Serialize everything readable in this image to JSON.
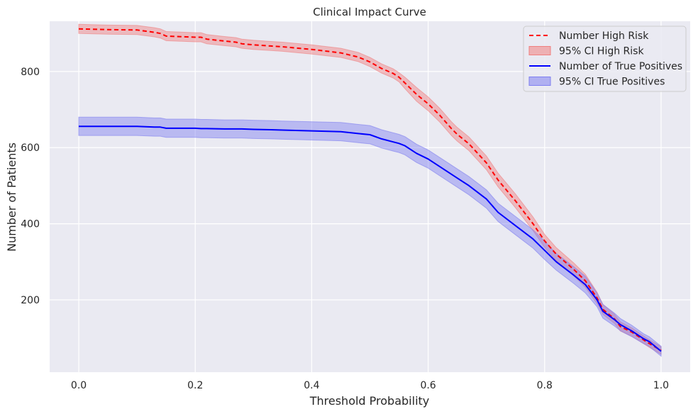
{
  "chart_data": {
    "type": "line",
    "title": "Clinical Impact Curve",
    "xlabel": "Threshold Probability",
    "ylabel": "Number of Patients",
    "xlim": [
      -0.05,
      1.05
    ],
    "ylim": [
      10,
      932
    ],
    "xticks": [
      0.0,
      0.2,
      0.4,
      0.6,
      0.8,
      1.0
    ],
    "xtick_labels": [
      "0.0",
      "0.2",
      "0.4",
      "0.6",
      "0.8",
      "1.0"
    ],
    "yticks": [
      200,
      400,
      600,
      800
    ],
    "ytick_labels": [
      "200",
      "400",
      "600",
      "800"
    ],
    "grid": true,
    "legend_position": "top-right",
    "colors": {
      "high_risk": "#ff0000",
      "true_positives": "#0000ff",
      "high_risk_band": "#f07f7f",
      "tp_band": "#7f7ff0",
      "background": "#eaeaf2"
    },
    "legend": [
      {
        "label": "Number High Risk",
        "kind": "dashed-line",
        "color": "#ff0000"
      },
      {
        "label": "95% CI High Risk",
        "kind": "band",
        "color": "#f07f7f"
      },
      {
        "label": "Number of True Positives",
        "kind": "line",
        "color": "#0000ff"
      },
      {
        "label": "95% CI True Positives",
        "kind": "band",
        "color": "#7f7ff0"
      }
    ],
    "x": [
      0.0,
      0.05,
      0.1,
      0.13,
      0.14,
      0.15,
      0.2,
      0.21,
      0.22,
      0.25,
      0.27,
      0.28,
      0.3,
      0.33,
      0.35,
      0.4,
      0.45,
      0.48,
      0.5,
      0.52,
      0.54,
      0.55,
      0.56,
      0.58,
      0.6,
      0.62,
      0.64,
      0.65,
      0.67,
      0.7,
      0.72,
      0.75,
      0.78,
      0.8,
      0.82,
      0.85,
      0.87,
      0.89,
      0.9,
      0.92,
      0.93,
      0.95,
      0.97,
      0.98,
      1.0
    ],
    "series": [
      {
        "name": "Number High Risk",
        "style": "dashed",
        "values": [
          912,
          910,
          909,
          903,
          900,
          893,
          890,
          890,
          885,
          880,
          877,
          873,
          870,
          867,
          865,
          858,
          849,
          838,
          825,
          808,
          795,
          785,
          770,
          740,
          715,
          685,
          650,
          635,
          610,
          560,
          515,
          460,
          400,
          355,
          320,
          280,
          250,
          205,
          175,
          150,
          130,
          115,
          95,
          85,
          67
        ],
        "ci_lower": [
          900,
          898,
          897,
          891,
          888,
          881,
          878,
          878,
          873,
          868,
          865,
          861,
          858,
          855,
          853,
          846,
          837,
          826,
          813,
          796,
          783,
          773,
          755,
          722,
          697,
          667,
          632,
          617,
          592,
          542,
          497,
          442,
          382,
          338,
          303,
          263,
          233,
          190,
          162,
          138,
          118,
          104,
          85,
          75,
          57
        ],
        "ci_upper": [
          924,
          922,
          921,
          915,
          912,
          905,
          902,
          902,
          897,
          892,
          889,
          885,
          882,
          879,
          877,
          870,
          861,
          850,
          837,
          820,
          807,
          797,
          785,
          758,
          733,
          703,
          668,
          653,
          628,
          578,
          533,
          478,
          418,
          372,
          337,
          297,
          267,
          220,
          188,
          162,
          142,
          126,
          105,
          95,
          77
        ]
      },
      {
        "name": "Number of True Positives",
        "style": "solid",
        "values": [
          656,
          656,
          656,
          654,
          654,
          651,
          651,
          650,
          650,
          649,
          649,
          649,
          648,
          647,
          646,
          644,
          642,
          637,
          634,
          623,
          615,
          611,
          605,
          585,
          570,
          550,
          530,
          520,
          500,
          465,
          430,
          395,
          360,
          330,
          300,
          265,
          240,
          200,
          170,
          148,
          135,
          118,
          98,
          90,
          65
        ],
        "ci_lower": [
          632,
          632,
          632,
          630,
          630,
          627,
          627,
          626,
          626,
          625,
          625,
          625,
          624,
          623,
          622,
          620,
          618,
          613,
          610,
          599,
          591,
          587,
          581,
          561,
          546,
          526,
          506,
          496,
          476,
          441,
          406,
          371,
          336,
          306,
          278,
          243,
          218,
          182,
          152,
          131,
          119,
          103,
          85,
          77,
          52
        ],
        "ci_upper": [
          680,
          680,
          680,
          678,
          678,
          675,
          675,
          674,
          674,
          673,
          673,
          673,
          672,
          671,
          670,
          668,
          666,
          661,
          658,
          647,
          639,
          635,
          629,
          609,
          594,
          574,
          554,
          544,
          524,
          489,
          454,
          419,
          384,
          354,
          322,
          287,
          262,
          218,
          188,
          165,
          151,
          133,
          111,
          103,
          78
        ]
      }
    ]
  }
}
